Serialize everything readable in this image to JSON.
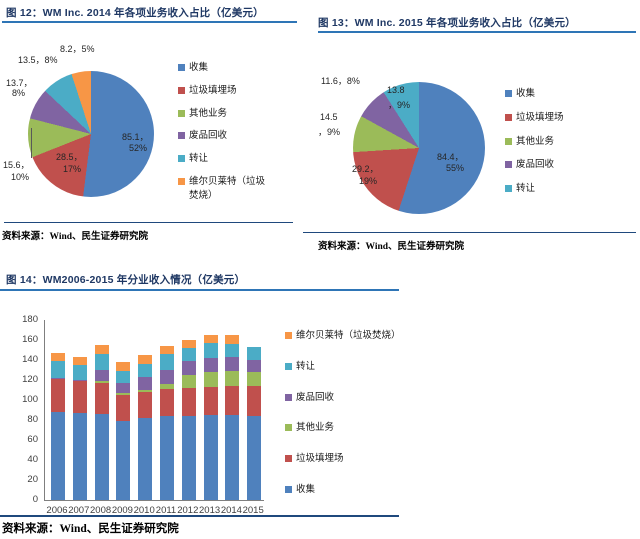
{
  "figures": [
    {
      "title": "图 12：WM Inc. 2014 年各项业务收入占比（亿美元）",
      "source": "资料来源：Wind、民生证券研究院"
    },
    {
      "title": "图 13：WM Inc. 2015 年各项业务收入占比（亿美元）",
      "source": "资料来源：Wind、民生证券研究院"
    },
    {
      "title": "图 14：WM2006-2015 年分业收入情况（亿美元）",
      "source": "资料来源：Wind、民生证券研究院"
    }
  ],
  "chart_data": [
    {
      "type": "pie",
      "title": "WM Inc. 2014 年各项业务收入占比",
      "unit": "亿美元",
      "slices": [
        {
          "name": "收集",
          "value": 85.1,
          "pct": 52,
          "color": "#4F81BD"
        },
        {
          "name": "垃圾填埋场",
          "value": 28.5,
          "pct": 17,
          "color": "#C0504D"
        },
        {
          "name": "其他业务",
          "value": 15.6,
          "pct": 10,
          "color": "#9BBB59"
        },
        {
          "name": "废品回收",
          "value": 13.7,
          "pct": 8,
          "color": "#8064A2"
        },
        {
          "name": "转让",
          "value": 13.5,
          "pct": 8,
          "color": "#4BACC6"
        },
        {
          "name": "维尔贝莱特（垃圾焚烧）",
          "value": 8.2,
          "pct": 5,
          "color": "#F79646"
        }
      ],
      "legend": [
        {
          "label": "收集",
          "color": "#4F81BD"
        },
        {
          "label": "垃圾填埋场",
          "color": "#C0504D"
        },
        {
          "label": "其他业务",
          "color": "#9BBB59"
        },
        {
          "label": "废品回收",
          "color": "#8064A2"
        },
        {
          "label": "转让",
          "color": "#4BACC6"
        },
        {
          "label": "维尔贝莱特（垃圾焚烧）",
          "color": "#F79646"
        }
      ],
      "point_labels": [
        {
          "t": "8.2，5%",
          "x": 60,
          "y": 42
        },
        {
          "t": "13.5，8%",
          "x": 18,
          "y": 53
        },
        {
          "t": "13.7，",
          "x": 6,
          "y": 76
        },
        {
          "t": "8%",
          "x": 12,
          "y": 88
        },
        {
          "t": "15.6，",
          "x": 3,
          "y": 158
        },
        {
          "t": "10%",
          "x": 11,
          "y": 172
        },
        {
          "t": "85.1，",
          "x": 122,
          "y": 130
        },
        {
          "t": "52%",
          "x": 129,
          "y": 143
        },
        {
          "t": "28.5，",
          "x": 56,
          "y": 150
        },
        {
          "t": "17%",
          "x": 63,
          "y": 164
        }
      ],
      "leader_line": {
        "x": 31,
        "y": 128,
        "h": 30
      }
    },
    {
      "type": "pie",
      "title": "WM Inc. 2015 年各项业务收入占比",
      "unit": "亿美元",
      "slices": [
        {
          "name": "收集",
          "value": 84.4,
          "pct": 55,
          "color": "#4F81BD"
        },
        {
          "name": "垃圾填埋场",
          "value": 29.2,
          "pct": 19,
          "color": "#C0504D"
        },
        {
          "name": "其他业务",
          "value": 14.5,
          "pct": 9,
          "color": "#9BBB59"
        },
        {
          "name": "废品回收",
          "value": 11.6,
          "pct": 8,
          "color": "#8064A2"
        },
        {
          "name": "转让",
          "value": 13.8,
          "pct": 9,
          "color": "#4BACC6"
        }
      ],
      "legend": [
        {
          "label": "收集",
          "color": "#4F81BD"
        },
        {
          "label": "垃圾填埋场",
          "color": "#C0504D"
        },
        {
          "label": "其他业务",
          "color": "#9BBB59"
        },
        {
          "label": "废品回收",
          "color": "#8064A2"
        },
        {
          "label": "转让",
          "color": "#4BACC6"
        }
      ],
      "point_labels": [
        {
          "t": "11.6，8%",
          "x": 18,
          "y": 64
        },
        {
          "t": "14.5",
          "x": 17,
          "y": 102
        },
        {
          "t": "，9%",
          "x": 15,
          "y": 115
        },
        {
          "t": "13.8",
          "x": 84,
          "y": 75
        },
        {
          "t": "，9%",
          "x": 85,
          "y": 88
        },
        {
          "t": "84.4，",
          "x": 134,
          "y": 140
        },
        {
          "t": "55%",
          "x": 143,
          "y": 153
        },
        {
          "t": "29.2，",
          "x": 49,
          "y": 152
        },
        {
          "t": "19%",
          "x": 56,
          "y": 166
        }
      ]
    },
    {
      "type": "bar",
      "stacked": true,
      "title": "WM2006-2015 年分业收入情况",
      "unit": "亿美元",
      "categories": [
        "2006",
        "2007",
        "2008",
        "2009",
        "2010",
        "2011",
        "2012",
        "2013",
        "2014",
        "2015"
      ],
      "series": [
        {
          "name": "收集",
          "color": "#4F81BD",
          "values": [
            88,
            87,
            86,
            79,
            82,
            84,
            84,
            85,
            85.1,
            84.4
          ]
        },
        {
          "name": "垃圾填埋场",
          "color": "#C0504D",
          "values": [
            33,
            32,
            31,
            26,
            26,
            27,
            28,
            28,
            28.5,
            29.2
          ]
        },
        {
          "name": "其他业务",
          "color": "#9BBB59",
          "values": [
            0,
            0,
            2,
            2,
            2,
            5,
            13,
            15,
            15.6,
            14.5
          ]
        },
        {
          "name": "废品回收",
          "color": "#8064A2",
          "values": [
            1,
            1,
            11,
            10,
            13,
            14,
            14,
            14,
            13.7,
            11.6
          ]
        },
        {
          "name": "转让",
          "color": "#4BACC6",
          "values": [
            17,
            15,
            16,
            12,
            13,
            16,
            13,
            15,
            13.5,
            13.8
          ]
        },
        {
          "name": "维尔贝莱特（垃圾焚烧）",
          "color": "#F79646",
          "values": [
            8,
            8,
            9,
            9,
            9,
            8,
            8,
            8,
            8.2,
            0
          ]
        }
      ],
      "legend": [
        {
          "label": "维尔贝莱特（垃圾焚烧）",
          "color": "#F79646"
        },
        {
          "label": "转让",
          "color": "#4BACC6"
        },
        {
          "label": "废品回收",
          "color": "#8064A2"
        },
        {
          "label": "其他业务",
          "color": "#9BBB59"
        },
        {
          "label": "垃圾填埋场",
          "color": "#C0504D"
        },
        {
          "label": "收集",
          "color": "#4F81BD"
        }
      ],
      "yticks": [
        0,
        20,
        40,
        60,
        80,
        100,
        120,
        140,
        160,
        180
      ],
      "ylim": [
        0,
        180
      ],
      "grid": false,
      "legend_position": "right"
    }
  ]
}
